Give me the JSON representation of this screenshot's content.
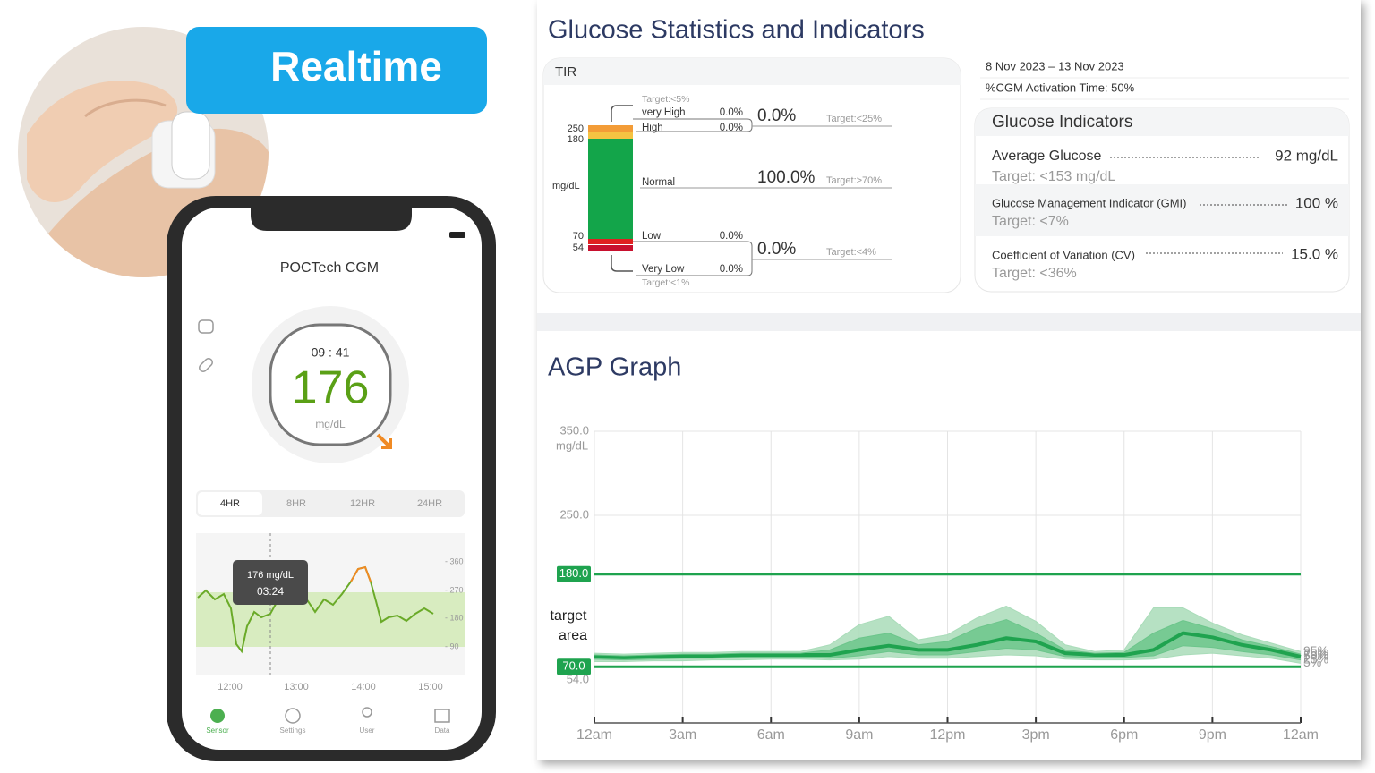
{
  "badge": "Realtime",
  "phone": {
    "app_title": "POCTech CGM",
    "time": "09 : 41",
    "reading": "176",
    "unit": "mg/dL",
    "tabs": [
      "4HR",
      "8HR",
      "12HR",
      "24HR"
    ],
    "tooltip": {
      "value": "176 mg/dL",
      "time": "03:24"
    },
    "chart_y_labels": [
      "- 360",
      "- 270",
      "- 180",
      "- 90"
    ],
    "chart_x_labels": [
      "12:00",
      "13:00",
      "14:00",
      "15:00"
    ],
    "nav": [
      "Sensor",
      "Settings",
      "User",
      "Data"
    ]
  },
  "stats": {
    "title": "Glucose Statistics and Indicators",
    "tir": {
      "label": "TIR",
      "unit": "mg/dL",
      "thresholds": [
        "250",
        "180",
        "70",
        "54"
      ],
      "rows": [
        {
          "target": "Target:<5%",
          "name": "very High",
          "value": "0.0%"
        },
        {
          "name": "High",
          "value": "0.0%"
        },
        {
          "name": "Normal"
        },
        {
          "name": "Low",
          "value": "0.0%"
        },
        {
          "name": "Very Low",
          "value": "0.0%",
          "target": "Target:<1%"
        }
      ],
      "groups": [
        {
          "value": "0.0%",
          "target": "Target:<25%"
        },
        {
          "value": "100.0%",
          "target": "Target:>70%"
        },
        {
          "value": "0.0%",
          "target": "Target:<4%"
        }
      ]
    },
    "date_range": "8 Nov 2023  –  13 Nov 2023",
    "activation": "%CGM Activation Time: 50%",
    "indicators": {
      "title": "Glucose Indicators",
      "items": [
        {
          "name": "Average Glucose",
          "value": "92 mg/dL",
          "target": "Target:  <153 mg/dL"
        },
        {
          "name": "Glucose Management Indicator (GMI)",
          "value": "100 %",
          "target": "Target:  <7%"
        },
        {
          "name": "Coefficient of Variation (CV)",
          "value": "15.0 %",
          "target": "Target:  <36%"
        }
      ]
    }
  },
  "chart_data": {
    "type": "line",
    "title": "AGP Graph",
    "y_unit": "mg/dL",
    "target_label": [
      "target",
      "area"
    ],
    "xlim": [
      0,
      24
    ],
    "xticks": [
      {
        "value": 0,
        "label": "12am"
      },
      {
        "value": 3,
        "label": "3am"
      },
      {
        "value": 6,
        "label": "6am"
      },
      {
        "value": 9,
        "label": "9am"
      },
      {
        "value": 12,
        "label": "12pm"
      },
      {
        "value": 15,
        "label": "3pm"
      },
      {
        "value": 18,
        "label": "6pm"
      },
      {
        "value": 21,
        "label": "9pm"
      },
      {
        "value": 24,
        "label": "12am"
      }
    ],
    "ylim": [
      0,
      350
    ],
    "yticks": [
      {
        "value": 54,
        "label": "54.0"
      },
      {
        "value": 70,
        "label": "70.0"
      },
      {
        "value": 180,
        "label": "180.0"
      },
      {
        "value": 250,
        "label": "250.0"
      },
      {
        "value": 350,
        "label": "350.0"
      }
    ],
    "target_range": [
      70,
      180
    ],
    "grid": true,
    "x": [
      0,
      1,
      2,
      3,
      4,
      5,
      6,
      7,
      8,
      9,
      10,
      11,
      12,
      13,
      14,
      15,
      16,
      17,
      18,
      19,
      20,
      21,
      22,
      23,
      24
    ],
    "series": [
      {
        "name": "5%",
        "color": "#a9dcb9",
        "values": [
          76,
          76,
          77,
          77,
          78,
          78,
          79,
          79,
          78,
          79,
          82,
          80,
          80,
          82,
          84,
          83,
          79,
          78,
          78,
          79,
          84,
          86,
          83,
          80,
          74
        ]
      },
      {
        "name": "25%",
        "color": "#6cc58b",
        "values": [
          79,
          78,
          79,
          80,
          80,
          81,
          81,
          81,
          80,
          83,
          88,
          84,
          84,
          88,
          92,
          90,
          82,
          81,
          81,
          83,
          95,
          93,
          88,
          84,
          78
        ]
      },
      {
        "name": "50%",
        "color": "#1fa34f",
        "values": [
          82,
          81,
          82,
          83,
          83,
          84,
          84,
          84,
          84,
          90,
          95,
          90,
          90,
          96,
          104,
          100,
          86,
          84,
          84,
          90,
          110,
          105,
          96,
          90,
          82
        ]
      },
      {
        "name": "75%",
        "color": "#6cc58b",
        "values": [
          84,
          83,
          84,
          85,
          85,
          86,
          86,
          86,
          90,
          104,
          110,
          96,
          100,
          116,
          126,
          110,
          90,
          86,
          87,
          110,
          125,
          115,
          102,
          94,
          85
        ]
      },
      {
        "name": "95%",
        "color": "#a9dcb9",
        "values": [
          86,
          85,
          86,
          87,
          87,
          88,
          88,
          88,
          96,
          120,
          130,
          102,
          108,
          128,
          142,
          124,
          96,
          88,
          90,
          140,
          140,
          122,
          108,
          98,
          88
        ]
      }
    ]
  }
}
